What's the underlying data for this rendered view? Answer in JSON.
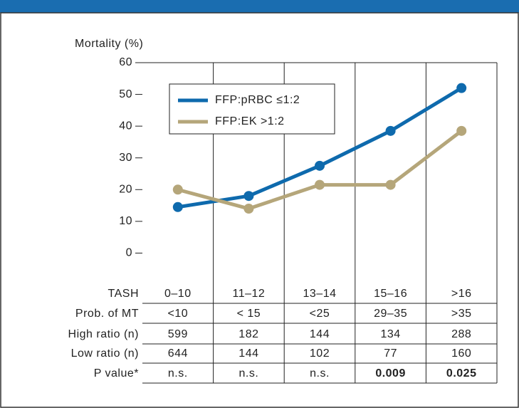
{
  "chart_data": {
    "type": "line",
    "y_label": "Mortality (%)",
    "categories": [
      "0–10",
      "11–12",
      "13–14",
      "15–16",
      ">16"
    ],
    "category_label": "TASH",
    "series": [
      {
        "name": "FFP:pRBC ≤1:2",
        "color": "#0e6aad",
        "values": [
          14.5,
          18,
          27.5,
          38.5,
          52
        ]
      },
      {
        "name": "FFP:EK >1:2",
        "color": "#b5a67a",
        "values": [
          20,
          14,
          21.5,
          21.5,
          38.5
        ]
      }
    ],
    "ylim": [
      -10,
      60
    ],
    "yticks": [
      0,
      10,
      20,
      30,
      40,
      50,
      60
    ],
    "table": {
      "rows": [
        {
          "label": "Prob. of MT",
          "cells": [
            "<10",
            "< 15",
            "<25",
            "29–35",
            ">35"
          ]
        },
        {
          "label": "High ratio (n)",
          "cells": [
            "599",
            "182",
            "144",
            "134",
            "288"
          ]
        },
        {
          "label": "Low ratio (n)",
          "cells": [
            "644",
            "144",
            "102",
            "77",
            "160"
          ]
        },
        {
          "label": "P value*",
          "cells": [
            "n.s.",
            "n.s.",
            "n.s.",
            "0.009",
            "0.025"
          ],
          "bold": [
            false,
            false,
            false,
            true,
            true
          ]
        }
      ]
    }
  }
}
